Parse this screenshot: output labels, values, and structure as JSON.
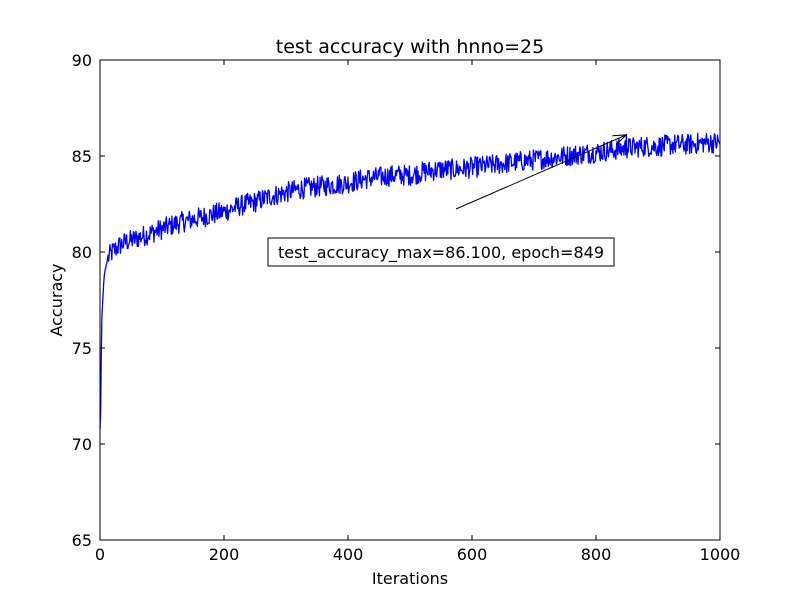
{
  "chart_data": {
    "type": "line",
    "title": "test accuracy with hnno=25",
    "xlabel": "Iterations",
    "ylabel": "Accuracy",
    "xlim": [
      0,
      1000
    ],
    "ylim": [
      65,
      90
    ],
    "xticks": [
      0,
      200,
      400,
      600,
      800,
      1000
    ],
    "yticks": [
      65,
      70,
      75,
      80,
      85,
      90
    ],
    "xtick_labels": [
      "0",
      "200",
      "400",
      "600",
      "800",
      "1000"
    ],
    "ytick_labels": [
      "65",
      "70",
      "75",
      "80",
      "85",
      "90"
    ],
    "grid": false,
    "legend": "none",
    "series": [
      {
        "color": "#0000ff",
        "x": [
          0,
          1,
          2,
          3,
          4,
          5,
          6,
          7,
          8,
          10,
          12,
          15,
          20,
          30,
          40,
          50,
          75,
          100,
          125,
          150,
          175,
          200,
          225,
          250,
          275,
          300,
          325,
          350,
          375,
          400,
          425,
          450,
          475,
          500,
          525,
          550,
          575,
          600,
          625,
          650,
          675,
          700,
          725,
          750,
          775,
          800,
          825,
          849,
          875,
          900,
          925,
          950,
          975,
          1000
        ],
        "y": [
          70.8,
          71.5,
          74.5,
          76.6,
          77.2,
          77.8,
          78.4,
          78.8,
          79.0,
          79.3,
          79.6,
          79.8,
          80.0,
          80.3,
          80.5,
          80.6,
          80.9,
          81.2,
          81.5,
          81.7,
          81.9,
          82.1,
          82.4,
          82.6,
          82.9,
          83.1,
          83.3,
          83.4,
          83.5,
          83.6,
          83.8,
          83.9,
          84.0,
          84.0,
          84.2,
          84.3,
          84.3,
          84.4,
          84.5,
          84.6,
          84.7,
          84.8,
          84.9,
          85.0,
          85.1,
          85.2,
          85.3,
          85.4,
          85.5,
          85.5,
          85.6,
          85.6,
          85.7,
          85.7
        ],
        "noise_amplitude": 0.55
      }
    ],
    "annotation": {
      "text": "test_accuracy_max=86.100, epoch=849",
      "point": [
        849,
        86.1
      ],
      "text_position": [
        550,
        80.0
      ]
    }
  }
}
